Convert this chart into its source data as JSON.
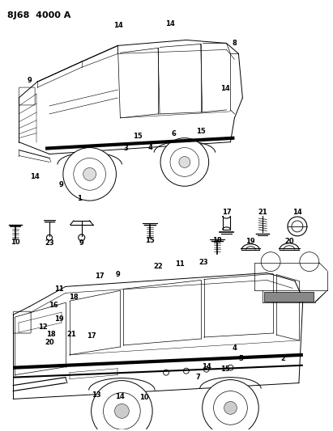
{
  "title": "8J68  4000 A",
  "bg_color": "#ffffff",
  "fig_width": 4.11,
  "fig_height": 5.33,
  "dpi": 100
}
